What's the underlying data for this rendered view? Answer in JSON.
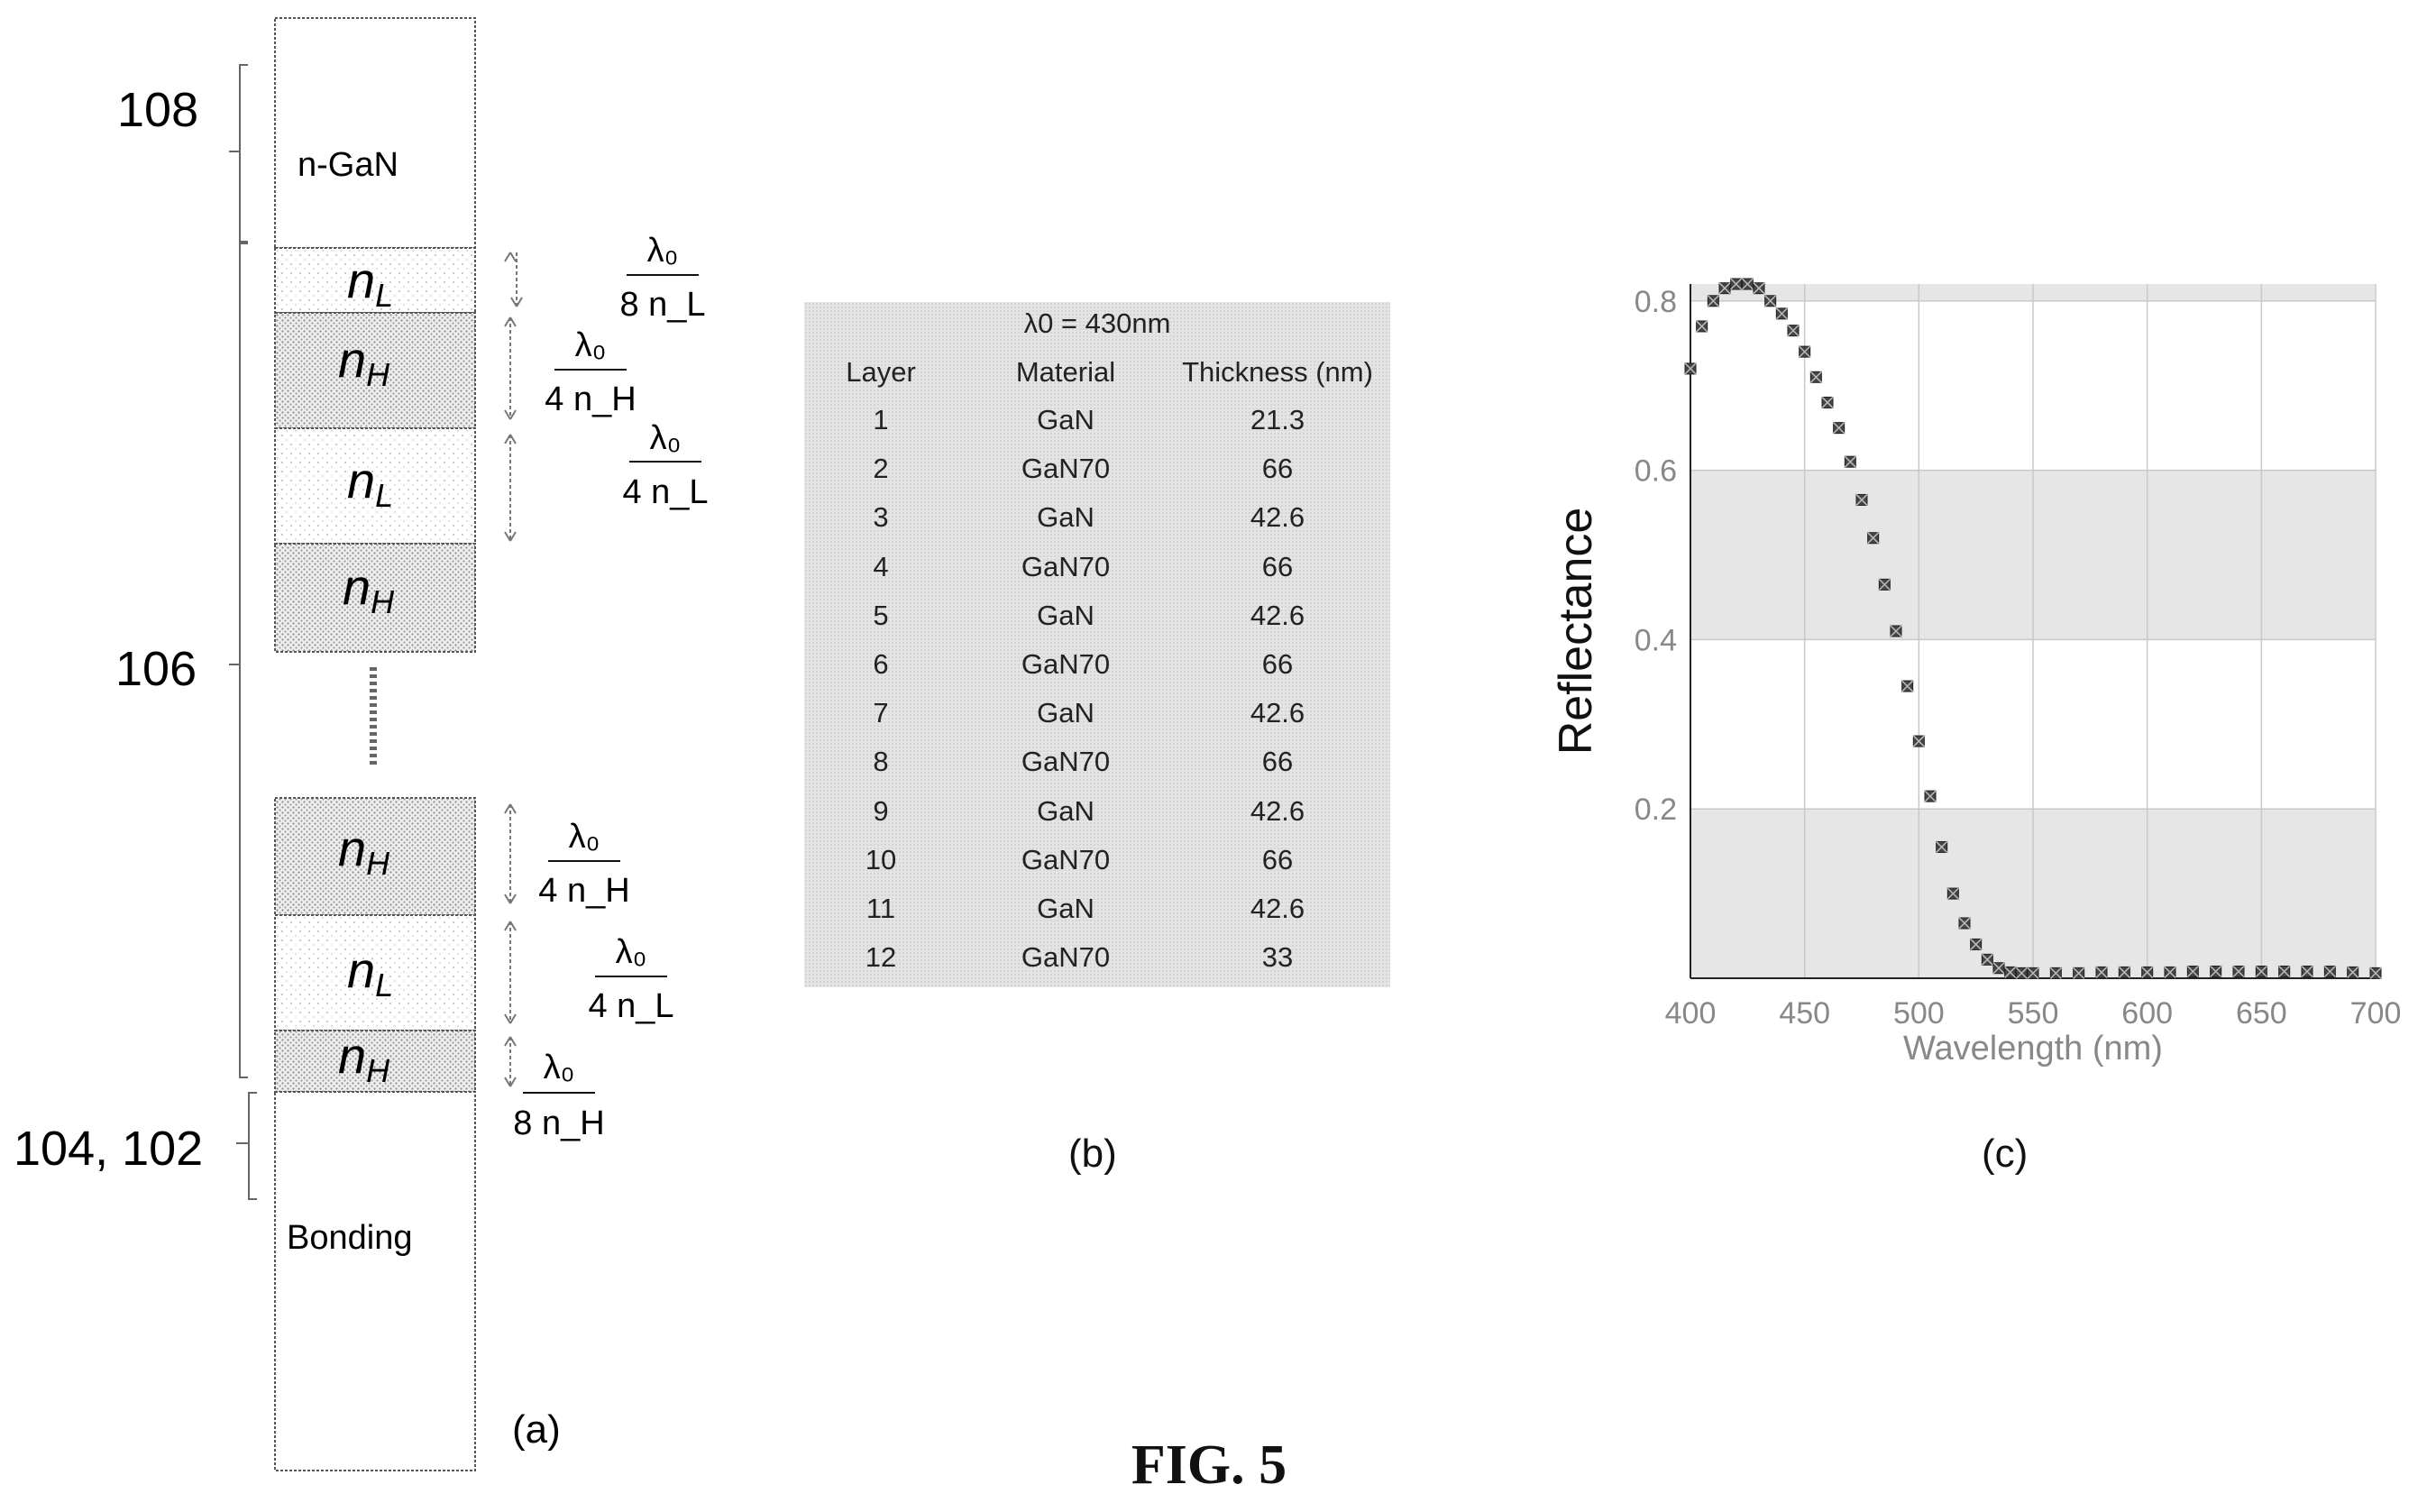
{
  "figure_title": "FIG. 5",
  "panel_a": {
    "label": "(a)",
    "ref_108": "108",
    "ref_106": "106",
    "ref_104_102": "104, 102",
    "top_layer": "n-GaN",
    "bottom_layer": "Bonding",
    "layers_top": [
      "n_L",
      "n_H",
      "n_L",
      "n_H"
    ],
    "layers_bottom": [
      "n_H",
      "n_L",
      "n_H"
    ],
    "thickness_labels": {
      "t1": {
        "num": "λ₀",
        "den": "8 n_L"
      },
      "t2": {
        "num": "λ₀",
        "den": "4 n_H"
      },
      "t3": {
        "num": "λ₀",
        "den": "4 n_L"
      },
      "t4": {
        "num": "λ₀",
        "den": "4 n_H"
      },
      "t5": {
        "num": "λ₀",
        "den": "4 n_L"
      },
      "t6": {
        "num": "λ₀",
        "den": "8 n_H"
      }
    }
  },
  "panel_b": {
    "label": "(b)",
    "caption": "λ0 = 430nm",
    "headers": [
      "Layer",
      "Material",
      "Thickness (nm)"
    ],
    "rows": [
      [
        "1",
        "GaN",
        "21.3"
      ],
      [
        "2",
        "GaN70",
        "66"
      ],
      [
        "3",
        "GaN",
        "42.6"
      ],
      [
        "4",
        "GaN70",
        "66"
      ],
      [
        "5",
        "GaN",
        "42.6"
      ],
      [
        "6",
        "GaN70",
        "66"
      ],
      [
        "7",
        "GaN",
        "42.6"
      ],
      [
        "8",
        "GaN70",
        "66"
      ],
      [
        "9",
        "GaN",
        "42.6"
      ],
      [
        "10",
        "GaN70",
        "66"
      ],
      [
        "11",
        "GaN",
        "42.6"
      ],
      [
        "12",
        "GaN70",
        "33"
      ]
    ]
  },
  "panel_c": {
    "label": "(c)"
  },
  "chart_data": {
    "type": "scatter",
    "xlabel": "Wavelength (nm)",
    "ylabel": "Reflectance",
    "xlim": [
      400,
      700
    ],
    "ylim": [
      0,
      0.82
    ],
    "xticks": [
      "400",
      "450",
      "500",
      "550",
      "600",
      "650",
      "700"
    ],
    "yticks": [
      "0.2",
      "0.4",
      "0.6",
      "0.8"
    ],
    "grid": true,
    "series": [
      {
        "marker_color": "#444444",
        "x": [
          400,
          405,
          410,
          415,
          420,
          425,
          430,
          435,
          440,
          445,
          450,
          455,
          460,
          465,
          470,
          475,
          480,
          485,
          490,
          495,
          500,
          505,
          510,
          515,
          520,
          525,
          530,
          535,
          540,
          545,
          550,
          560,
          570,
          580,
          590,
          600,
          610,
          620,
          630,
          640,
          650,
          660,
          670,
          680,
          690,
          700
        ],
        "y": [
          0.72,
          0.77,
          0.8,
          0.815,
          0.82,
          0.82,
          0.815,
          0.8,
          0.785,
          0.765,
          0.74,
          0.71,
          0.68,
          0.65,
          0.61,
          0.565,
          0.52,
          0.465,
          0.41,
          0.345,
          0.28,
          0.215,
          0.155,
          0.1,
          0.065,
          0.04,
          0.022,
          0.012,
          0.007,
          0.006,
          0.006,
          0.006,
          0.006,
          0.007,
          0.007,
          0.007,
          0.007,
          0.008,
          0.008,
          0.008,
          0.008,
          0.008,
          0.008,
          0.008,
          0.007,
          0.006
        ]
      }
    ]
  }
}
